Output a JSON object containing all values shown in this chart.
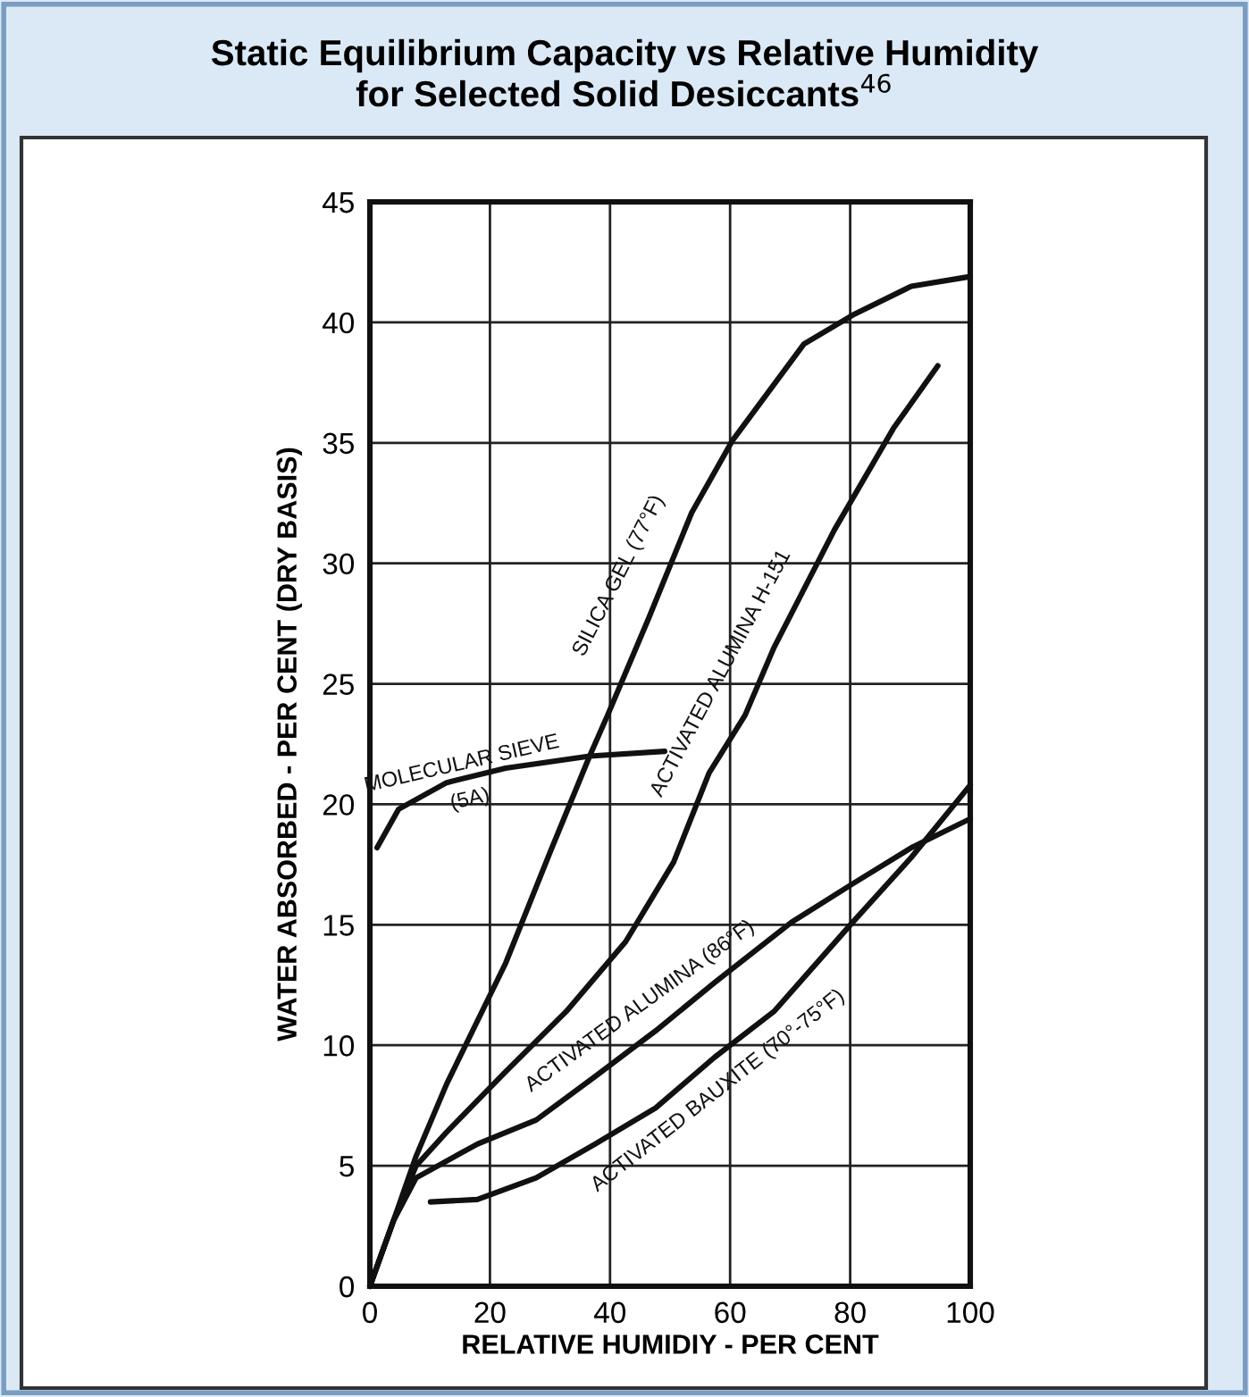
{
  "chart_data": {
    "type": "line",
    "title": "Static Equilibrium Capacity vs Relative Humidity\nfor Selected Solid Desiccants$^{46}$",
    "xlabel": "RELATIVE HUMIDIY - PER CENT",
    "ylabel": "WATER ABSORBED - PER CENT (DRY BASIS)",
    "series": [
      {
        "color": "#111111",
        "x": [
          0,
          0.3,
          3.9,
          7.7,
          12.8,
          22.6,
          30,
          36.6,
          39.6,
          46.4,
          53.6,
          60.4,
          72.3,
          80.4,
          90.2,
          100
        ],
        "values": [
          0,
          0.2,
          2.7,
          5.4,
          8.4,
          13.4,
          18,
          22,
          23.7,
          27.7,
          32.1,
          35.1,
          39.1,
          40.3,
          41.5,
          41.9
        ]
      },
      {
        "color": "#111111",
        "x": [
          0,
          3.9,
          7.7,
          12.8,
          22.6,
          32.7,
          42.6,
          50.6,
          56.5,
          62.5,
          67.3,
          77.4,
          87.2,
          94.6
        ],
        "values": [
          0,
          2.7,
          5.0,
          6.4,
          8.9,
          11.4,
          14.3,
          17.6,
          21.3,
          23.7,
          26.5,
          31.4,
          35.6,
          38.2
        ]
      },
      {
        "color": "#111111",
        "x": [
          1.2,
          4.8,
          12.8,
          22.6,
          36.6,
          49.1
        ],
        "values": [
          18.2,
          19.8,
          20.9,
          21.5,
          22.0,
          22.2
        ]
      },
      {
        "color": "#111111",
        "x": [
          0,
          3.9,
          7.7,
          17.9,
          27.7,
          37.5,
          47.6,
          57.4,
          70.2,
          80.4,
          90.2,
          100
        ],
        "values": [
          0,
          2.7,
          4.5,
          5.9,
          6.9,
          8.7,
          10.6,
          12.6,
          15.1,
          16.7,
          18.2,
          19.4
        ]
      },
      {
        "color": "#111111",
        "x": [
          10.1,
          17.9,
          27.7,
          37.5,
          47.6,
          57.4,
          67.3,
          80.4,
          90.2,
          100
        ],
        "values": [
          3.5,
          3.6,
          4.5,
          5.9,
          7.4,
          9.5,
          11.4,
          15.1,
          17.8,
          20.8
        ]
      }
    ],
    "xlim": [
      0,
      100
    ],
    "xticks": [
      0,
      20,
      40,
      60,
      80,
      100
    ],
    "ylim": [
      0,
      45
    ],
    "yticks": [
      0,
      5,
      10,
      15,
      20,
      25,
      30,
      35,
      40,
      45
    ],
    "grid": true,
    "marker": "none",
    "line_style": "solid",
    "annotations": [
      "SILICA GEL (77°F)",
      "ACTIVATED ALUMINA H-151",
      "MOLECULAR SIEVE\n(5A)",
      "ACTIVATED ALUMINA (86°F)",
      "ACTIVATED BAUXITE (70°-75°F)"
    ]
  }
}
